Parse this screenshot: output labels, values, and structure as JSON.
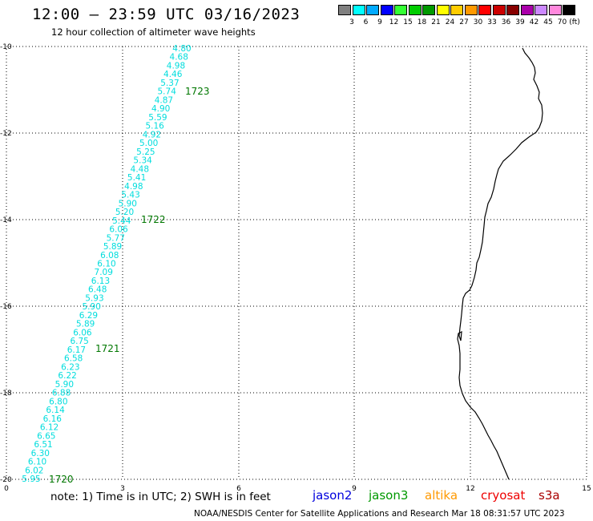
{
  "title": "12:00 — 23:59 UTC 03/16/2023",
  "subtitle": "12 hour collection of altimeter wave heights",
  "colorbar": {
    "colors": [
      "#808080",
      "#00ffff",
      "#00aaff",
      "#0000ff",
      "#33ff33",
      "#00cc00",
      "#009900",
      "#ffff00",
      "#ffcc00",
      "#ff9900",
      "#ff0000",
      "#cc0000",
      "#880000",
      "#aa00aa",
      "#cc88ff",
      "#ff88dd",
      "#000000"
    ],
    "labels": [
      "3",
      "6",
      "9",
      "12",
      "15",
      "18",
      "21",
      "24",
      "27",
      "30",
      "33",
      "36",
      "39",
      "42",
      "45",
      "70"
    ],
    "unit": "(ft)"
  },
  "axes": {
    "x_ticks": [
      "0",
      "3",
      "6",
      "9",
      "12",
      "15"
    ],
    "y_ticks": [
      "-10",
      "-12",
      "-14",
      "-16",
      "-18",
      "-20"
    ]
  },
  "track": {
    "color": "#00dddd",
    "swh_ft": [
      "4.80",
      "4.68",
      "4.98",
      "4.46",
      "5.37",
      "5.74",
      "4.87",
      "4.90",
      "5.59",
      "5.16",
      "4.92",
      "5.00",
      "5.25",
      "5.34",
      "4.48",
      "5.41",
      "4.98",
      "5.43",
      "5.90",
      "5.20",
      "5.44",
      "6.06",
      "5.77",
      "5.89",
      "6.08",
      "6.10",
      "7.09",
      "6.13",
      "6.48",
      "5.93",
      "5.90",
      "6.29",
      "5.89",
      "6.06",
      "6.75",
      "6.17",
      "6.58",
      "6.23",
      "6.22",
      "5.90",
      "6.88",
      "6.80",
      "6.14",
      "6.16",
      "6.12",
      "6.65",
      "6.51",
      "6.30",
      "6.10",
      "6.02",
      "5.95"
    ]
  },
  "time_labels": {
    "color": "#007700",
    "labels": [
      "1723",
      "1722",
      "1721",
      "1720"
    ]
  },
  "note": "note: 1) Time is in UTC; 2) SWH is in feet",
  "legend": [
    {
      "name": "jason2",
      "color": "#0000dd"
    },
    {
      "name": "jason3",
      "color": "#009900"
    },
    {
      "name": "altika",
      "color": "#ff9900"
    },
    {
      "name": "cryosat",
      "color": "#ee0000"
    },
    {
      "name": "s3a",
      "color": "#aa0000"
    }
  ],
  "credit": "NOAA/NESDIS Center for Satellite Applications and Research   Mar 18 08:31:57 UTC 2023"
}
